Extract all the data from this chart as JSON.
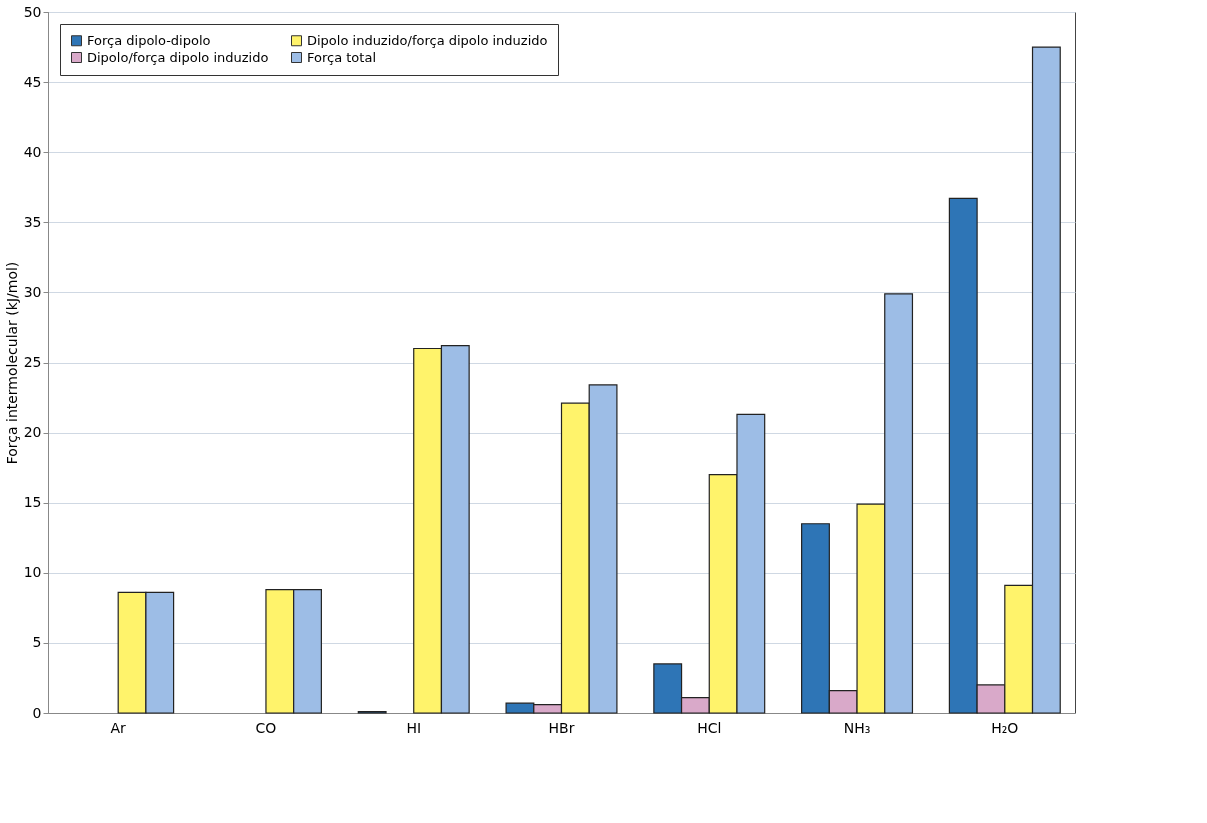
{
  "chart_data": {
    "type": "bar",
    "ylabel": "Força intermolecular (kJ/mol)",
    "categories": [
      "Ar",
      "CO",
      "HI",
      "HBr",
      "HCl",
      "NH₃",
      "H₂O"
    ],
    "series": [
      {
        "name": "Força dipolo-dipolo",
        "color": "#2e75b6",
        "values": [
          null,
          null,
          0.1,
          0.7,
          3.5,
          13.5,
          36.7
        ]
      },
      {
        "name": "Dipolo/força dipolo induzido",
        "color": "#d9a9c9",
        "values": [
          null,
          null,
          null,
          0.6,
          1.1,
          1.6,
          2.0
        ]
      },
      {
        "name": "Dipolo induzido/força dipolo induzido",
        "color": "#fff36b",
        "values": [
          8.6,
          8.8,
          26.0,
          22.1,
          17.0,
          14.9,
          9.1
        ]
      },
      {
        "name": "Força total",
        "color": "#9dbde6",
        "values": [
          8.6,
          8.8,
          26.2,
          23.4,
          21.3,
          29.9,
          47.5
        ]
      }
    ],
    "ylim": [
      0,
      50
    ],
    "yticks": [
      0,
      5,
      10,
      15,
      20,
      25,
      30,
      35,
      40,
      45,
      50
    ],
    "grid": "y",
    "legend": "top left"
  }
}
